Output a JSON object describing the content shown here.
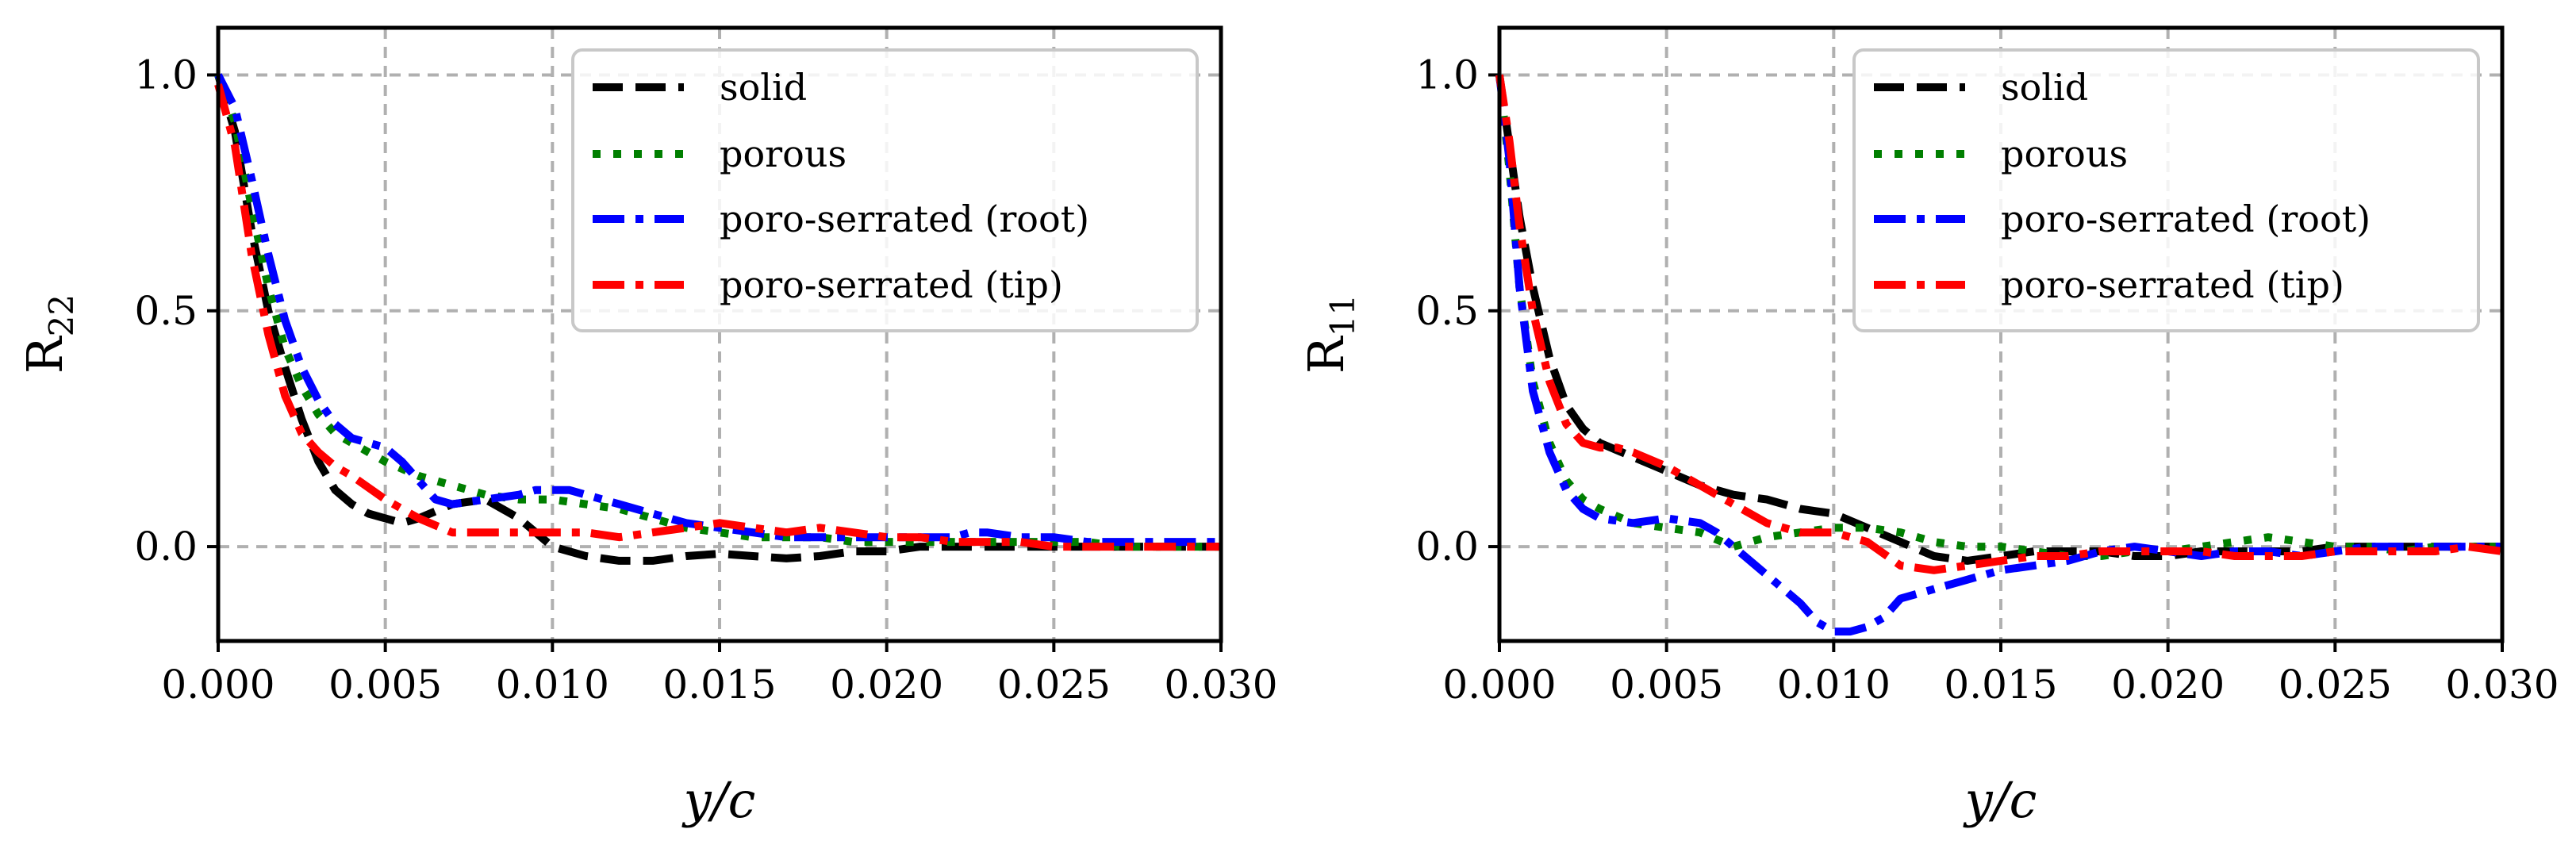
{
  "figure": {
    "panel_count": 2
  },
  "chart_data": [
    {
      "type": "line",
      "id": "left",
      "xlabel": "y/c",
      "ylabel": "R22",
      "ylabel_base": "R",
      "ylabel_sub": "22",
      "xlim": [
        0,
        0.03
      ],
      "ylim": [
        -0.2,
        1.1
      ],
      "xticks": [
        0,
        0.005,
        0.01,
        0.015,
        0.02,
        0.025,
        0.03
      ],
      "xtick_labels": [
        "0.000",
        "0.005",
        "0.010",
        "0.015",
        "0.020",
        "0.025",
        "0.030"
      ],
      "yticks": [
        0,
        0.5,
        1.0
      ],
      "ytick_labels": [
        "0.0",
        "0.5",
        "1.0"
      ],
      "grid": true,
      "legend_position": "top-right",
      "series": [
        {
          "name": "solid",
          "color": "#000000",
          "style": "dashed",
          "x": [
            0,
            0.0005,
            0.001,
            0.0015,
            0.002,
            0.0025,
            0.003,
            0.0035,
            0.004,
            0.0045,
            0.005,
            0.0055,
            0.006,
            0.007,
            0.008,
            0.009,
            0.0095,
            0.01,
            0.011,
            0.012,
            0.013,
            0.014,
            0.015,
            0.016,
            0.017,
            0.018,
            0.019,
            0.02,
            0.021,
            0.022,
            0.023,
            0.024,
            0.025,
            0.026,
            0.027,
            0.028,
            0.029,
            0.03
          ],
          "y": [
            1.0,
            0.88,
            0.67,
            0.5,
            0.38,
            0.27,
            0.18,
            0.12,
            0.09,
            0.07,
            0.06,
            0.05,
            0.06,
            0.09,
            0.1,
            0.06,
            0.03,
            0.0,
            -0.02,
            -0.03,
            -0.03,
            -0.02,
            -0.015,
            -0.02,
            -0.025,
            -0.02,
            -0.01,
            -0.01,
            0.0,
            0.0,
            0.0,
            0.0,
            0.0,
            0.0,
            0.0,
            0.0,
            0.0,
            0.0
          ]
        },
        {
          "name": "porous",
          "color": "#007f00",
          "style": "dotted",
          "x": [
            0,
            0.0005,
            0.001,
            0.0015,
            0.002,
            0.0025,
            0.003,
            0.0035,
            0.004,
            0.005,
            0.006,
            0.007,
            0.008,
            0.009,
            0.01,
            0.011,
            0.012,
            0.013,
            0.014,
            0.015,
            0.016,
            0.017,
            0.018,
            0.019,
            0.02,
            0.021,
            0.022,
            0.023,
            0.024,
            0.025,
            0.026,
            0.027,
            0.028,
            0.029,
            0.03
          ],
          "y": [
            1.0,
            0.9,
            0.72,
            0.55,
            0.42,
            0.34,
            0.28,
            0.24,
            0.22,
            0.18,
            0.15,
            0.13,
            0.11,
            0.1,
            0.1,
            0.09,
            0.08,
            0.06,
            0.04,
            0.03,
            0.02,
            0.02,
            0.02,
            0.01,
            0.01,
            0.01,
            0.01,
            0.01,
            0.01,
            0.01,
            0.01,
            0.0,
            0.0,
            0.0,
            0.0
          ]
        },
        {
          "name": "poro-serrated (root)",
          "color": "#0000ff",
          "style": "dashdot",
          "x": [
            0,
            0.0005,
            0.001,
            0.0015,
            0.002,
            0.0025,
            0.003,
            0.0035,
            0.004,
            0.0045,
            0.005,
            0.0055,
            0.006,
            0.0065,
            0.007,
            0.008,
            0.009,
            0.0095,
            0.01,
            0.0105,
            0.011,
            0.012,
            0.013,
            0.014,
            0.015,
            0.016,
            0.017,
            0.018,
            0.019,
            0.02,
            0.021,
            0.022,
            0.0225,
            0.023,
            0.024,
            0.025,
            0.026,
            0.027,
            0.028,
            0.029,
            0.03
          ],
          "y": [
            1.0,
            0.93,
            0.78,
            0.62,
            0.48,
            0.38,
            0.31,
            0.26,
            0.23,
            0.22,
            0.21,
            0.18,
            0.14,
            0.1,
            0.09,
            0.1,
            0.11,
            0.12,
            0.12,
            0.12,
            0.11,
            0.09,
            0.07,
            0.05,
            0.04,
            0.03,
            0.02,
            0.02,
            0.02,
            0.02,
            0.02,
            0.02,
            0.03,
            0.03,
            0.02,
            0.02,
            0.01,
            0.01,
            0.01,
            0.01,
            0.01
          ]
        },
        {
          "name": "poro-serrated (tip)",
          "color": "#ff0000",
          "style": "dashdot",
          "x": [
            0,
            0.0005,
            0.001,
            0.0015,
            0.002,
            0.0025,
            0.003,
            0.0035,
            0.004,
            0.005,
            0.006,
            0.007,
            0.008,
            0.009,
            0.01,
            0.011,
            0.012,
            0.013,
            0.014,
            0.015,
            0.016,
            0.017,
            0.018,
            0.019,
            0.02,
            0.021,
            0.022,
            0.023,
            0.024,
            0.025,
            0.026,
            0.027,
            0.028,
            0.029,
            0.03
          ],
          "y": [
            0.98,
            0.85,
            0.62,
            0.45,
            0.32,
            0.24,
            0.2,
            0.17,
            0.15,
            0.1,
            0.06,
            0.03,
            0.03,
            0.03,
            0.03,
            0.03,
            0.02,
            0.03,
            0.04,
            0.05,
            0.04,
            0.03,
            0.04,
            0.03,
            0.02,
            0.02,
            0.01,
            0.01,
            0.01,
            0.0,
            0.0,
            0.0,
            0.0,
            0.0,
            0.0
          ]
        }
      ]
    },
    {
      "type": "line",
      "id": "right",
      "xlabel": "y/c",
      "ylabel": "R11",
      "ylabel_base": "R",
      "ylabel_sub": "11",
      "xlim": [
        0,
        0.03
      ],
      "ylim": [
        -0.2,
        1.1
      ],
      "xticks": [
        0,
        0.005,
        0.01,
        0.015,
        0.02,
        0.025,
        0.03
      ],
      "xtick_labels": [
        "0.000",
        "0.005",
        "0.010",
        "0.015",
        "0.020",
        "0.025",
        "0.030"
      ],
      "yticks": [
        0,
        0.5,
        1.0
      ],
      "ytick_labels": [
        "0.0",
        "0.5",
        "1.0"
      ],
      "grid": true,
      "legend_position": "top-right",
      "series": [
        {
          "name": "solid",
          "color": "#000000",
          "style": "dashed",
          "x": [
            0,
            0.0003,
            0.0006,
            0.001,
            0.0015,
            0.002,
            0.0025,
            0.003,
            0.004,
            0.005,
            0.006,
            0.007,
            0.008,
            0.009,
            0.01,
            0.011,
            0.012,
            0.013,
            0.014,
            0.015,
            0.016,
            0.017,
            0.018,
            0.019,
            0.02,
            0.021,
            0.022,
            0.023,
            0.024,
            0.025,
            0.026,
            0.027,
            0.028,
            0.029,
            0.03
          ],
          "y": [
            1.0,
            0.85,
            0.7,
            0.55,
            0.4,
            0.3,
            0.25,
            0.22,
            0.19,
            0.16,
            0.13,
            0.11,
            0.1,
            0.08,
            0.07,
            0.04,
            0.01,
            -0.02,
            -0.03,
            -0.02,
            -0.01,
            -0.01,
            -0.01,
            -0.02,
            -0.02,
            -0.01,
            -0.01,
            -0.01,
            -0.01,
            0.0,
            0.0,
            0.0,
            0.0,
            0.0,
            0.0
          ]
        },
        {
          "name": "porous",
          "color": "#007f00",
          "style": "dotted",
          "x": [
            0,
            0.0003,
            0.0006,
            0.001,
            0.0015,
            0.002,
            0.0025,
            0.003,
            0.004,
            0.005,
            0.006,
            0.007,
            0.008,
            0.009,
            0.01,
            0.011,
            0.012,
            0.013,
            0.014,
            0.015,
            0.016,
            0.017,
            0.018,
            0.019,
            0.02,
            0.021,
            0.022,
            0.023,
            0.024,
            0.025,
            0.026,
            0.027,
            0.028,
            0.029,
            0.03
          ],
          "y": [
            1.0,
            0.8,
            0.55,
            0.35,
            0.22,
            0.14,
            0.1,
            0.08,
            0.05,
            0.04,
            0.03,
            0.0,
            0.02,
            0.03,
            0.04,
            0.04,
            0.03,
            0.01,
            0.0,
            0.0,
            -0.01,
            -0.02,
            -0.02,
            -0.01,
            -0.01,
            0.0,
            0.01,
            0.02,
            0.01,
            0.0,
            0.0,
            -0.01,
            0.0,
            0.0,
            0.0
          ]
        },
        {
          "name": "poro-serrated (root)",
          "color": "#0000ff",
          "style": "dashdot",
          "x": [
            0,
            0.0003,
            0.0006,
            0.001,
            0.0015,
            0.002,
            0.0025,
            0.003,
            0.004,
            0.005,
            0.006,
            0.0065,
            0.007,
            0.008,
            0.009,
            0.0095,
            0.01,
            0.0105,
            0.011,
            0.0115,
            0.012,
            0.013,
            0.014,
            0.015,
            0.016,
            0.017,
            0.018,
            0.019,
            0.02,
            0.021,
            0.022,
            0.023,
            0.024,
            0.025,
            0.026,
            0.027,
            0.028,
            0.029,
            0.03
          ],
          "y": [
            1.0,
            0.82,
            0.55,
            0.33,
            0.2,
            0.12,
            0.08,
            0.06,
            0.05,
            0.06,
            0.05,
            0.03,
            0.0,
            -0.06,
            -0.12,
            -0.16,
            -0.18,
            -0.18,
            -0.17,
            -0.15,
            -0.11,
            -0.09,
            -0.07,
            -0.05,
            -0.04,
            -0.03,
            -0.01,
            0.0,
            -0.01,
            -0.02,
            -0.01,
            -0.01,
            -0.02,
            -0.01,
            0.0,
            0.0,
            0.0,
            0.0,
            0.0
          ]
        },
        {
          "name": "poro-serrated (tip)",
          "color": "#ff0000",
          "style": "dashdot",
          "x": [
            0,
            0.0003,
            0.0006,
            0.001,
            0.0015,
            0.002,
            0.0025,
            0.003,
            0.0035,
            0.004,
            0.005,
            0.006,
            0.007,
            0.008,
            0.009,
            0.01,
            0.011,
            0.012,
            0.013,
            0.014,
            0.015,
            0.016,
            0.017,
            0.018,
            0.019,
            0.02,
            0.021,
            0.022,
            0.023,
            0.024,
            0.025,
            0.026,
            0.027,
            0.028,
            0.029,
            0.03
          ],
          "y": [
            1.0,
            0.86,
            0.68,
            0.5,
            0.35,
            0.26,
            0.22,
            0.21,
            0.21,
            0.2,
            0.17,
            0.13,
            0.09,
            0.05,
            0.03,
            0.03,
            0.01,
            -0.04,
            -0.05,
            -0.04,
            -0.03,
            -0.02,
            -0.02,
            -0.01,
            -0.01,
            -0.01,
            -0.01,
            -0.02,
            -0.02,
            -0.02,
            -0.01,
            -0.01,
            -0.01,
            -0.01,
            0.0,
            -0.01
          ]
        }
      ]
    }
  ]
}
